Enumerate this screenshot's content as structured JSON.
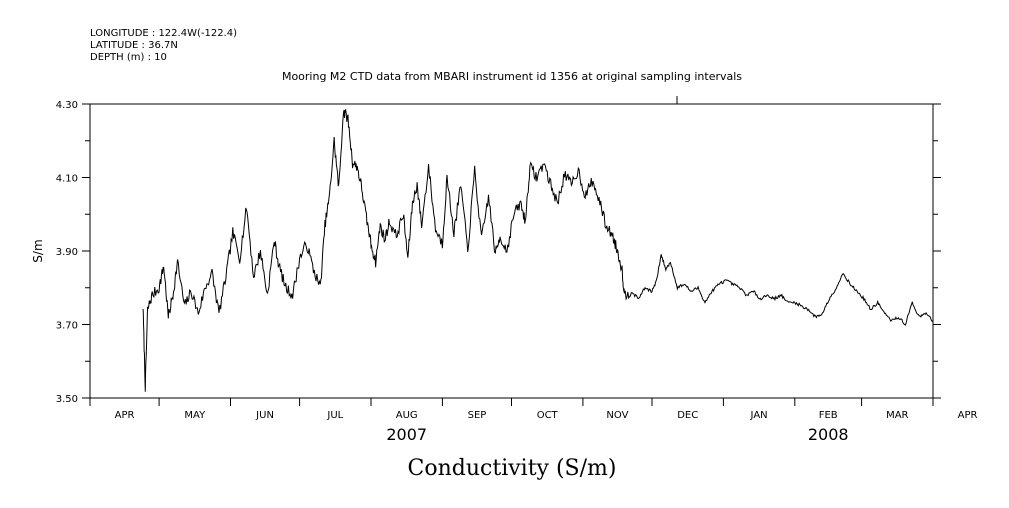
{
  "header": {
    "longitude": "LONGITUDE : 122.4W(-122.4)",
    "latitude": "LATITUDE : 36.7N",
    "depth": "DEPTH (m) : 10"
  },
  "chart_data": {
    "type": "line",
    "title": "Mooring M2 CTD data from MBARI instrument id 1356 at original sampling intervals",
    "xlabel": "Conductivity (S/m)",
    "ylabel": "S/m",
    "ylim": [
      3.5,
      4.3
    ],
    "xlim_days": [
      0,
      366
    ],
    "grid": false,
    "legend": "none",
    "line_color": "#000000",
    "y_ticks": [
      "3.50",
      "3.70",
      "3.90",
      "4.10",
      "4.30"
    ],
    "y_tick_values": [
      3.5,
      3.7,
      3.9,
      4.1,
      4.3
    ],
    "x_months": [
      "APR",
      "MAY",
      "JUN",
      "JUL",
      "AUG",
      "SEP",
      "OCT",
      "NOV",
      "DEC",
      "JAN",
      "FEB",
      "MAR",
      "APR"
    ],
    "x_year_labels": [
      {
        "label": "2007",
        "month_index": 4
      },
      {
        "label": "2008",
        "month_index": 10
      }
    ],
    "series": [
      {
        "values": [
          [
            "2007-04-24",
            3.75
          ],
          [
            "2007-04-25",
            3.53
          ],
          [
            "2007-04-26",
            3.74
          ],
          [
            "2007-04-28",
            3.78
          ],
          [
            "2007-05-01",
            3.8
          ],
          [
            "2007-05-03",
            3.86
          ],
          [
            "2007-05-05",
            3.72
          ],
          [
            "2007-05-07",
            3.78
          ],
          [
            "2007-05-09",
            3.87
          ],
          [
            "2007-05-12",
            3.75
          ],
          [
            "2007-05-15",
            3.79
          ],
          [
            "2007-05-18",
            3.73
          ],
          [
            "2007-05-21",
            3.8
          ],
          [
            "2007-05-24",
            3.84
          ],
          [
            "2007-05-27",
            3.73
          ],
          [
            "2007-05-30",
            3.83
          ],
          [
            "2007-06-02",
            3.95
          ],
          [
            "2007-06-05",
            3.88
          ],
          [
            "2007-06-08",
            4.02
          ],
          [
            "2007-06-11",
            3.83
          ],
          [
            "2007-06-14",
            3.9
          ],
          [
            "2007-06-17",
            3.78
          ],
          [
            "2007-06-20",
            3.93
          ],
          [
            "2007-06-22",
            3.86
          ],
          [
            "2007-06-25",
            3.8
          ],
          [
            "2007-06-28",
            3.78
          ],
          [
            "2007-07-01",
            3.88
          ],
          [
            "2007-07-04",
            3.92
          ],
          [
            "2007-07-07",
            3.85
          ],
          [
            "2007-07-10",
            3.8
          ],
          [
            "2007-07-12",
            3.97
          ],
          [
            "2007-07-14",
            4.05
          ],
          [
            "2007-07-16",
            4.2
          ],
          [
            "2007-07-18",
            4.07
          ],
          [
            "2007-07-20",
            4.28
          ],
          [
            "2007-07-22",
            4.26
          ],
          [
            "2007-07-24",
            4.14
          ],
          [
            "2007-07-26",
            4.13
          ],
          [
            "2007-07-28",
            4.07
          ],
          [
            "2007-07-30",
            3.99
          ],
          [
            "2007-08-01",
            3.92
          ],
          [
            "2007-08-03",
            3.87
          ],
          [
            "2007-08-05",
            3.97
          ],
          [
            "2007-08-07",
            3.93
          ],
          [
            "2007-08-09",
            3.98
          ],
          [
            "2007-08-12",
            3.94
          ],
          [
            "2007-08-15",
            4.0
          ],
          [
            "2007-08-17",
            3.88
          ],
          [
            "2007-08-19",
            4.03
          ],
          [
            "2007-08-21",
            4.08
          ],
          [
            "2007-08-23",
            3.97
          ],
          [
            "2007-08-26",
            4.13
          ],
          [
            "2007-08-29",
            3.96
          ],
          [
            "2007-09-01",
            3.92
          ],
          [
            "2007-09-03",
            4.1
          ],
          [
            "2007-09-06",
            3.95
          ],
          [
            "2007-09-09",
            4.08
          ],
          [
            "2007-09-12",
            3.9
          ],
          [
            "2007-09-15",
            4.12
          ],
          [
            "2007-09-18",
            3.93
          ],
          [
            "2007-09-21",
            4.05
          ],
          [
            "2007-09-24",
            3.89
          ],
          [
            "2007-09-26",
            3.94
          ],
          [
            "2007-09-29",
            3.9
          ],
          [
            "2007-10-02",
            4.0
          ],
          [
            "2007-10-05",
            4.03
          ],
          [
            "2007-10-07",
            3.98
          ],
          [
            "2007-10-09",
            4.13
          ],
          [
            "2007-10-12",
            4.1
          ],
          [
            "2007-10-15",
            4.14
          ],
          [
            "2007-10-18",
            4.08
          ],
          [
            "2007-10-21",
            4.03
          ],
          [
            "2007-10-24",
            4.11
          ],
          [
            "2007-10-27",
            4.08
          ],
          [
            "2007-10-30",
            4.12
          ],
          [
            "2007-11-02",
            4.05
          ],
          [
            "2007-11-05",
            4.09
          ],
          [
            "2007-11-08",
            4.04
          ],
          [
            "2007-11-11",
            3.97
          ],
          [
            "2007-11-14",
            3.94
          ],
          [
            "2007-11-16",
            3.9
          ],
          [
            "2007-11-18",
            3.85
          ],
          [
            "2007-11-19",
            3.78
          ],
          [
            "2007-11-22",
            3.79
          ],
          [
            "2007-11-25",
            3.77
          ],
          [
            "2007-11-28",
            3.8
          ],
          [
            "2007-12-01",
            3.79
          ],
          [
            "2007-12-03",
            3.82
          ],
          [
            "2007-12-05",
            3.89
          ],
          [
            "2007-12-07",
            3.85
          ],
          [
            "2007-12-09",
            3.87
          ],
          [
            "2007-12-12",
            3.8
          ],
          [
            "2007-12-15",
            3.81
          ],
          [
            "2007-12-18",
            3.79
          ],
          [
            "2007-12-21",
            3.8
          ],
          [
            "2007-12-24",
            3.76
          ],
          [
            "2007-12-27",
            3.79
          ],
          [
            "2007-12-30",
            3.81
          ],
          [
            "2008-01-02",
            3.82
          ],
          [
            "2008-01-05",
            3.81
          ],
          [
            "2008-01-08",
            3.8
          ],
          [
            "2008-01-11",
            3.78
          ],
          [
            "2008-01-14",
            3.79
          ],
          [
            "2008-01-17",
            3.77
          ],
          [
            "2008-01-20",
            3.78
          ],
          [
            "2008-01-23",
            3.77
          ],
          [
            "2008-01-26",
            3.78
          ],
          [
            "2008-01-29",
            3.76
          ],
          [
            "2008-02-01",
            3.76
          ],
          [
            "2008-02-04",
            3.75
          ],
          [
            "2008-02-07",
            3.74
          ],
          [
            "2008-02-10",
            3.72
          ],
          [
            "2008-02-13",
            3.73
          ],
          [
            "2008-02-16",
            3.77
          ],
          [
            "2008-02-19",
            3.8
          ],
          [
            "2008-02-22",
            3.84
          ],
          [
            "2008-02-25",
            3.81
          ],
          [
            "2008-02-28",
            3.79
          ],
          [
            "2008-03-02",
            3.77
          ],
          [
            "2008-03-05",
            3.74
          ],
          [
            "2008-03-08",
            3.76
          ],
          [
            "2008-03-11",
            3.73
          ],
          [
            "2008-03-14",
            3.71
          ],
          [
            "2008-03-17",
            3.72
          ],
          [
            "2008-03-20",
            3.7
          ],
          [
            "2008-03-23",
            3.76
          ],
          [
            "2008-03-26",
            3.72
          ],
          [
            "2008-03-29",
            3.73
          ],
          [
            "2008-04-01",
            3.71
          ]
        ]
      }
    ]
  }
}
